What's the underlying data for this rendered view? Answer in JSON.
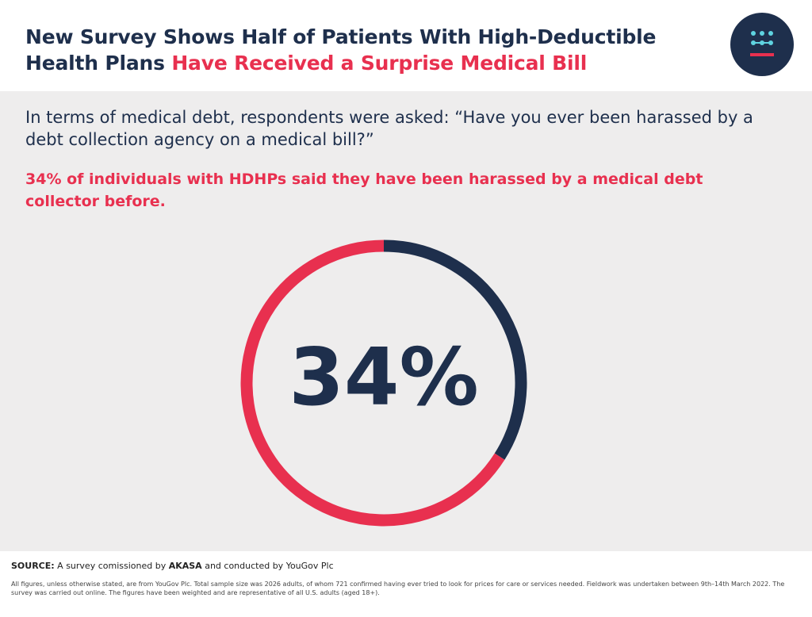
{
  "header": {
    "title_part1": "New Survey Shows Half of Patients With High-Deductible Health Plans ",
    "title_part2": "Have Received a Surprise Medical Bill"
  },
  "question": "In terms of medical debt, respondents were asked: “Have you ever been harassed by a debt collection agency on a medical bill?”",
  "finding": "34% of individuals with HDHPs said they have been harassed by a medical debt collector before.",
  "chart_data": {
    "type": "pie",
    "variant": "donut",
    "center_label": "34%",
    "values": [
      34,
      66
    ],
    "colors": [
      "#1e2f4c",
      "#e8304f"
    ]
  },
  "colors": {
    "navy": "#1e2f4c",
    "red": "#e8304f",
    "panel_bg": "#eeeded",
    "logo_dots": "#5fd3e0"
  },
  "footer": {
    "source_label": "SOURCE:",
    "source_pre": " A survey comissioned by ",
    "source_brand": "AKASA",
    "source_post": " and conducted by YouGov Plc",
    "fineprint": "All figures, unless otherwise stated, are from YouGov Plc. Total sample size was 2026 adults, of whom 721 confirmed having ever tried to look for prices for care or services needed. Fieldwork was undertaken between 9th–14th March 2022. The survey was carried out online. The figures have been weighted and are representative of all U.S. adults (aged 18+)."
  }
}
